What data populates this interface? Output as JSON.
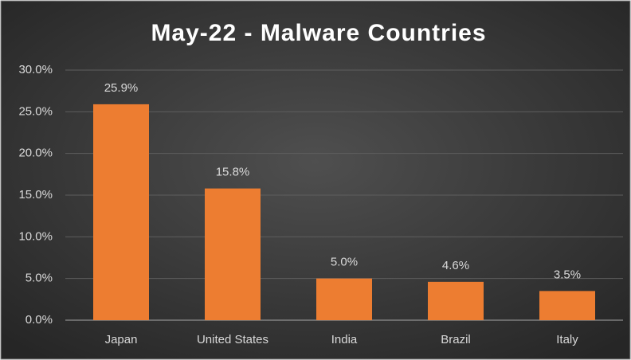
{
  "chart_data": {
    "type": "bar",
    "title": "May-22 - Malware Countries",
    "categories": [
      "Japan",
      "United States",
      "India",
      "Brazil",
      "Italy"
    ],
    "values": [
      25.9,
      15.8,
      5.0,
      4.6,
      3.5
    ],
    "value_labels": [
      "25.9%",
      "15.8%",
      "5.0%",
      "4.6%",
      "3.5%"
    ],
    "color": "#ed7d31",
    "ylim": [
      0,
      30
    ],
    "yticks": [
      {
        "value": 0,
        "label": "0.0%"
      },
      {
        "value": 5,
        "label": "5.0%"
      },
      {
        "value": 10,
        "label": "10.0%"
      },
      {
        "value": 15,
        "label": "15.0%"
      },
      {
        "value": 20,
        "label": "20.0%"
      },
      {
        "value": 25,
        "label": "25.0%"
      },
      {
        "value": 30,
        "label": "30.0%"
      }
    ],
    "grid": true
  }
}
